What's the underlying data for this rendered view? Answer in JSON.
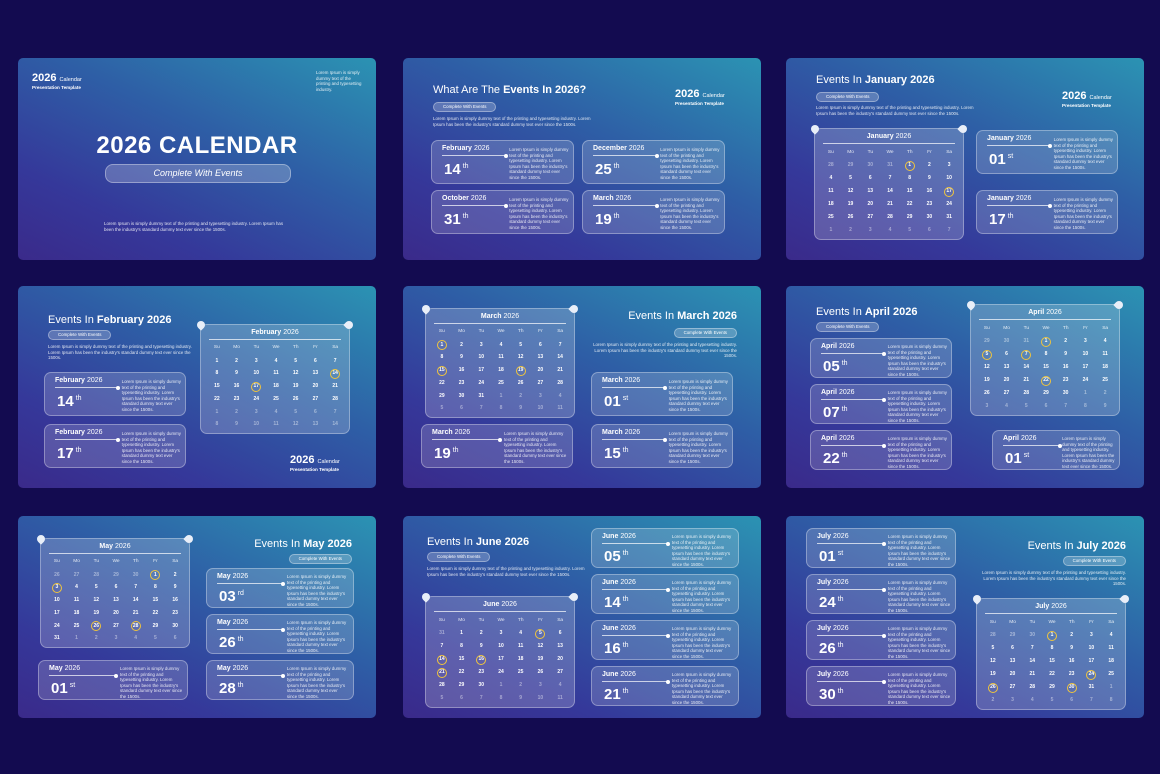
{
  "slides": [
    {
      "brand": {
        "year": "2026",
        "word": "Calendar",
        "sub": "Presentation Template"
      },
      "corner": "Lorem Ipsum is simply dummy text of the printing and typesetting industry.",
      "title": "2026 CALENDAR",
      "subtitle": "Complete With Events",
      "body": "Lorem Ipsum is simply dummy text of the printing and typesetting industry. Lorem Ipsum has been the industry's standard dummy text ever since the 1500s."
    },
    {
      "title_lead": "What Are The",
      "title_bold": "Events In 2026?",
      "tag": "Complete With Events",
      "body": "Lorem Ipsum is simply dummy text of the printing and typesetting industry. Lorem Ipsum has been the industry's standard dummy text ever since the 1500s.",
      "brand": {
        "year": "2026",
        "word": "Calendar",
        "sub": "Presentation Template"
      },
      "events": [
        {
          "month": "February",
          "year": "2026",
          "day": "14",
          "suffix": "th",
          "text": "Lorem Ipsum is simply dummy text of the printing and typesetting industry. Lorem Ipsum has been the industry's standard dummy text ever since the 1500s."
        },
        {
          "month": "December",
          "year": "2026",
          "day": "25",
          "suffix": "th",
          "text": "Lorem Ipsum is simply dummy text of the printing and typesetting industry. Lorem Ipsum has been the industry's standard dummy text ever since the 1500s."
        },
        {
          "month": "October",
          "year": "2026",
          "day": "31",
          "suffix": "th",
          "text": "Lorem Ipsum is simply dummy text of the printing and typesetting industry. Lorem Ipsum has been the industry's standard dummy text ever since the 1500s."
        },
        {
          "month": "March",
          "year": "2026",
          "day": "19",
          "suffix": "th",
          "text": "Lorem Ipsum is simply dummy text of the printing and typesetting industry. Lorem Ipsum has been the industry's standard dummy text ever since the 1500s."
        }
      ]
    },
    {
      "title_lead": "Events In",
      "title_bold": "January 2026",
      "tag": "Complete With Events",
      "body": "Lorem Ipsum is simply dummy text of the printing and typesetting industry. Lorem Ipsum has been the industry's standard dummy text ever since the 1500s.",
      "brand": {
        "year": "2026",
        "word": "Calendar",
        "sub": "Presentation Template"
      },
      "calendar": {
        "month": "January",
        "year": "2026",
        "weekdays": [
          "Su",
          "Mo",
          "Tu",
          "We",
          "Th",
          "Fr",
          "Sa"
        ],
        "days": [
          28,
          29,
          30,
          31,
          1,
          2,
          3,
          4,
          5,
          6,
          7,
          8,
          9,
          10,
          11,
          12,
          13,
          14,
          15,
          16,
          17,
          18,
          19,
          20,
          21,
          22,
          23,
          24,
          25,
          26,
          27,
          28,
          29,
          30,
          31,
          1,
          2,
          3,
          4,
          5,
          6,
          7
        ],
        "highlighted": [
          1,
          17
        ]
      },
      "events": [
        {
          "month": "January",
          "year": "2026",
          "day": "01",
          "suffix": "st",
          "text": "Lorem Ipsum is simply dummy text of the printing and typesetting industry. Lorem Ipsum has been the industry's standard dummy text ever since the 1500s."
        },
        {
          "month": "January",
          "year": "2026",
          "day": "17",
          "suffix": "th",
          "text": "Lorem Ipsum is simply dummy text of the printing and typesetting industry. Lorem Ipsum has been the industry's standard dummy text ever since the 1500s."
        }
      ]
    },
    {
      "title_lead": "Events In",
      "title_bold": "February 2026",
      "tag": "Complete With Events",
      "body": "Lorem Ipsum is simply dummy text of the printing and typesetting industry. Lorem Ipsum has been the industry's standard dummy text ever since the 1500s.",
      "brand": {
        "year": "2026",
        "word": "Calendar",
        "sub": "Presentation Template"
      },
      "calendar": {
        "month": "February",
        "year": "2026",
        "weekdays": [
          "Su",
          "Mo",
          "Tu",
          "We",
          "Th",
          "Fr",
          "Sa"
        ],
        "days": [
          1,
          2,
          3,
          4,
          5,
          6,
          7,
          8,
          9,
          10,
          11,
          12,
          13,
          14,
          15,
          16,
          17,
          18,
          19,
          20,
          21,
          22,
          23,
          24,
          25,
          26,
          27,
          28,
          1,
          2,
          3,
          4,
          5,
          6,
          7,
          8,
          9,
          10,
          11,
          12,
          13,
          14
        ],
        "highlighted": [
          14,
          17
        ]
      },
      "events": [
        {
          "month": "February",
          "year": "2026",
          "day": "14",
          "suffix": "th",
          "text": "Lorem Ipsum is simply dummy text of the printing and typesetting industry. Lorem Ipsum has been the industry's standard dummy text ever since the 1500s."
        },
        {
          "month": "February",
          "year": "2026",
          "day": "17",
          "suffix": "th",
          "text": "Lorem Ipsum is simply dummy text of the printing and typesetting industry. Lorem Ipsum has been the industry's standard dummy text ever since the 1500s."
        }
      ]
    },
    {
      "title_lead": "Events In",
      "title_bold": "March 2026",
      "tag": "Complete With Events",
      "body": "Lorem Ipsum is simply dummy text of the printing and typesetting industry. Lorem Ipsum has been the industry's standard dummy text ever since the 1500s.",
      "calendar": {
        "month": "March",
        "year": "2026",
        "weekdays": [
          "Su",
          "Mo",
          "Tu",
          "We",
          "Th",
          "Fr",
          "Sa"
        ],
        "days": [
          1,
          2,
          3,
          4,
          5,
          6,
          7,
          8,
          9,
          10,
          11,
          12,
          13,
          14,
          15,
          16,
          17,
          18,
          19,
          20,
          21,
          22,
          23,
          24,
          25,
          26,
          27,
          28,
          29,
          30,
          31,
          1,
          2,
          3,
          4,
          5,
          6,
          7,
          8,
          9,
          10,
          11
        ],
        "highlighted": [
          1,
          15,
          19
        ]
      },
      "events": [
        {
          "month": "March",
          "year": "2026",
          "day": "01",
          "suffix": "st",
          "text": "Lorem Ipsum is simply dummy text of the printing and typesetting industry. Lorem Ipsum has been the industry's standard dummy text ever since the 1500s."
        },
        {
          "month": "March",
          "year": "2026",
          "day": "19",
          "suffix": "th",
          "text": "Lorem Ipsum is simply dummy text of the printing and typesetting industry. Lorem Ipsum has been the industry's standard dummy text ever since the 1500s."
        },
        {
          "month": "March",
          "year": "2026",
          "day": "15",
          "suffix": "th",
          "text": "Lorem Ipsum is simply dummy text of the printing and typesetting industry. Lorem Ipsum has been the industry's standard dummy text ever since the 1500s."
        }
      ]
    },
    {
      "title_lead": "Events In",
      "title_bold": "April 2026",
      "tag": "Complete With Events",
      "calendar": {
        "month": "April",
        "year": "2026",
        "weekdays": [
          "Su",
          "Mo",
          "Tu",
          "We",
          "Th",
          "Fr",
          "Sa"
        ],
        "days": [
          29,
          30,
          31,
          1,
          2,
          3,
          4,
          5,
          6,
          7,
          8,
          9,
          10,
          11,
          12,
          13,
          14,
          15,
          16,
          17,
          18,
          19,
          20,
          21,
          22,
          23,
          24,
          25,
          26,
          27,
          28,
          29,
          30,
          1,
          2,
          3,
          4,
          5,
          6,
          7,
          8,
          9
        ],
        "highlighted": [
          1,
          5,
          7,
          22
        ]
      },
      "events": [
        {
          "month": "April",
          "year": "2026",
          "day": "05",
          "suffix": "th",
          "text": "Lorem Ipsum is simply dummy text of the printing and typesetting industry. Lorem Ipsum has been the industry's standard dummy text ever since the 1500s."
        },
        {
          "month": "April",
          "year": "2026",
          "day": "07",
          "suffix": "th",
          "text": "Lorem Ipsum is simply dummy text of the printing and typesetting industry. Lorem Ipsum has been the industry's standard dummy text ever since the 1500s."
        },
        {
          "month": "April",
          "year": "2026",
          "day": "22",
          "suffix": "th",
          "text": "Lorem Ipsum is simply dummy text of the printing and typesetting industry. Lorem Ipsum has been the industry's standard dummy text ever since the 1500s."
        },
        {
          "month": "April",
          "year": "2026",
          "day": "01",
          "suffix": "st",
          "text": "Lorem Ipsum is simply dummy text of the printing and typesetting industry. Lorem Ipsum has been the industry's standard dummy text ever since the 1500s."
        }
      ]
    },
    {
      "title_lead": "Events In",
      "title_bold": "May 2026",
      "tag": "Complete With Events",
      "calendar": {
        "month": "May",
        "year": "2026",
        "weekdays": [
          "Su",
          "Mo",
          "Tu",
          "We",
          "Th",
          "Fr",
          "Sa"
        ],
        "days": [
          26,
          27,
          28,
          29,
          30,
          1,
          2,
          3,
          4,
          5,
          6,
          7,
          8,
          9,
          10,
          11,
          12,
          13,
          14,
          15,
          16,
          17,
          18,
          19,
          20,
          21,
          22,
          23,
          24,
          25,
          26,
          27,
          28,
          29,
          30,
          31,
          1,
          2,
          3,
          4,
          5,
          6
        ],
        "highlighted": [
          1,
          3,
          26,
          28
        ]
      },
      "events": [
        {
          "month": "May",
          "year": "2026",
          "day": "03",
          "suffix": "rd",
          "text": "Lorem Ipsum is simply dummy text of the printing and typesetting industry. Lorem Ipsum has been the industry's standard dummy text ever since the 1500s."
        },
        {
          "month": "May",
          "year": "2026",
          "day": "26",
          "suffix": "th",
          "text": "Lorem Ipsum is simply dummy text of the printing and typesetting industry. Lorem Ipsum has been the industry's standard dummy text ever since the 1500s."
        },
        {
          "month": "May",
          "year": "2026",
          "day": "28",
          "suffix": "th",
          "text": "Lorem Ipsum is simply dummy text of the printing and typesetting industry. Lorem Ipsum has been the industry's standard dummy text ever since the 1500s."
        },
        {
          "month": "May",
          "year": "2026",
          "day": "01",
          "suffix": "st",
          "text": "Lorem Ipsum is simply dummy text of the printing and typesetting industry. Lorem Ipsum has been the industry's standard dummy text ever since the 1500s."
        }
      ]
    },
    {
      "title_lead": "Events In",
      "title_bold": "June 2026",
      "tag": "Complete With Events",
      "body": "Lorem Ipsum is simply dummy text of the printing and typesetting industry. Lorem Ipsum has been the industry's standard dummy text ever since the 1500s.",
      "calendar": {
        "month": "June",
        "year": "2026",
        "weekdays": [
          "Su",
          "Mo",
          "Tu",
          "We",
          "Th",
          "Fr",
          "Sa"
        ],
        "days": [
          31,
          1,
          2,
          3,
          4,
          5,
          6,
          7,
          8,
          9,
          10,
          11,
          12,
          13,
          14,
          15,
          16,
          17,
          18,
          19,
          20,
          21,
          22,
          23,
          24,
          25,
          26,
          27,
          28,
          29,
          30,
          1,
          2,
          3,
          4,
          5,
          6,
          7,
          8,
          9,
          10,
          11
        ],
        "highlighted": [
          5,
          14,
          16,
          21
        ]
      },
      "events": [
        {
          "month": "June",
          "year": "2026",
          "day": "05",
          "suffix": "th",
          "text": "Lorem Ipsum is simply dummy text of the printing and typesetting industry. Lorem Ipsum has been the industry's standard dummy text ever since the 1500s."
        },
        {
          "month": "June",
          "year": "2026",
          "day": "14",
          "suffix": "th",
          "text": "Lorem Ipsum is simply dummy text of the printing and typesetting industry. Lorem Ipsum has been the industry's standard dummy text ever since the 1500s."
        },
        {
          "month": "June",
          "year": "2026",
          "day": "16",
          "suffix": "th",
          "text": "Lorem Ipsum is simply dummy text of the printing and typesetting industry. Lorem Ipsum has been the industry's standard dummy text ever since the 1500s."
        },
        {
          "month": "June",
          "year": "2026",
          "day": "21",
          "suffix": "th",
          "text": "Lorem Ipsum is simply dummy text of the printing and typesetting industry. Lorem Ipsum has been the industry's standard dummy text ever since the 1500s."
        }
      ]
    },
    {
      "title_lead": "Events In",
      "title_bold": "July 2026",
      "tag": "Complete With Events",
      "body": "Lorem Ipsum is simply dummy text of the printing and typesetting industry. Lorem Ipsum has been the industry's standard dummy text ever since the 1500s.",
      "calendar": {
        "month": "July",
        "year": "2026",
        "weekdays": [
          "Su",
          "Mo",
          "Tu",
          "We",
          "Th",
          "Fr",
          "Sa"
        ],
        "days": [
          28,
          29,
          30,
          1,
          2,
          3,
          4,
          5,
          6,
          7,
          8,
          9,
          10,
          11,
          12,
          13,
          14,
          15,
          16,
          17,
          18,
          19,
          20,
          21,
          22,
          23,
          24,
          25,
          26,
          27,
          28,
          29,
          30,
          31,
          1,
          2,
          3,
          4,
          5,
          6,
          7,
          8
        ],
        "highlighted": [
          1,
          24,
          26,
          30
        ]
      },
      "events": [
        {
          "month": "July",
          "year": "2026",
          "day": "01",
          "suffix": "st",
          "text": "Lorem Ipsum is simply dummy text of the printing and typesetting industry. Lorem Ipsum has been the industry's standard dummy text ever since the 1500s."
        },
        {
          "month": "July",
          "year": "2026",
          "day": "24",
          "suffix": "th",
          "text": "Lorem Ipsum is simply dummy text of the printing and typesetting industry. Lorem Ipsum has been the industry's standard dummy text ever since the 1500s."
        },
        {
          "month": "July",
          "year": "2026",
          "day": "26",
          "suffix": "th",
          "text": "Lorem Ipsum is simply dummy text of the printing and typesetting industry. Lorem Ipsum has been the industry's standard dummy text ever since the 1500s."
        },
        {
          "month": "July",
          "year": "2026",
          "day": "30",
          "suffix": "th",
          "text": "Lorem Ipsum is simply dummy text of the printing and typesetting industry. Lorem Ipsum has been the industry's standard dummy text ever since the 1500s."
        }
      ]
    }
  ]
}
